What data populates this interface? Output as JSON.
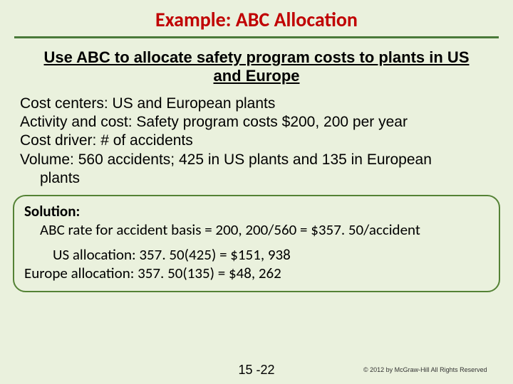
{
  "colors": {
    "background": "#eaf1dd",
    "title_color": "#c00000",
    "title_underline": "#4a7a3a",
    "solution_border": "#548235",
    "text_color": "#000000"
  },
  "title": "Example: ABC Allocation",
  "subtitle": "Use ABC to allocate safety program costs to plants in US and Europe",
  "body": {
    "line1": "Cost centers: US and European plants",
    "line2": "Activity and cost: Safety program costs $200, 200 per year",
    "line3": "Cost driver: # of accidents",
    "line4_a": "Volume:  560 accidents; 425 in US plants and 135 in European",
    "line4_b": "plants"
  },
  "solution": {
    "label": "Solution:",
    "rate": "ABC rate for accident basis = 200, 200/560 = $357. 50/accident",
    "us": "US allocation: 357. 50(425) = $151, 938",
    "europe": "Europe allocation: 357. 50(135) = $48, 262"
  },
  "footer": {
    "page": "15 -22",
    "copyright": "© 2012 by McGraw-Hill   All Rights Reserved"
  }
}
